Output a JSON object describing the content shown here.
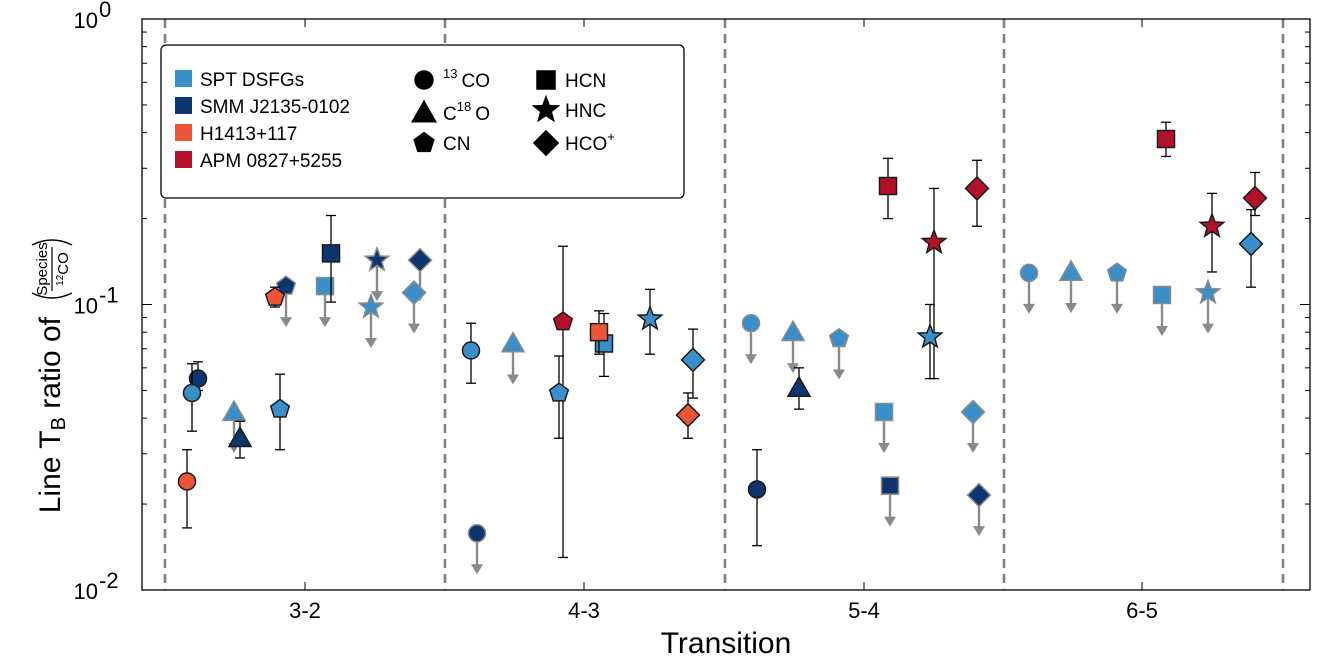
{
  "chart_data": {
    "type": "scatter",
    "x_label": "Transition",
    "y_label": {
      "prefix": "Line T",
      "sub": "B",
      "middle": " ratio of ",
      "numerator": "Species",
      "denominator_sup": "12",
      "denominator": "CO"
    },
    "y_scale": "log",
    "ylim": [
      0.01,
      1
    ],
    "y_ticks": [
      {
        "value": 1,
        "base": "10",
        "exp": "0"
      },
      {
        "value": 0.1,
        "base": "10",
        "exp": "-1"
      },
      {
        "value": 0.01,
        "base": "10",
        "exp": "-2"
      }
    ],
    "categories": [
      "3-2",
      "4-3",
      "5-4",
      "6-5"
    ],
    "sources": [
      {
        "name": "SPT DSFGs",
        "color": "#3a8fcb"
      },
      {
        "name": "SMM J2135-0102",
        "color": "#0d3570"
      },
      {
        "name": "H1413+117",
        "color": "#ee5538"
      },
      {
        "name": "APM 0827+5255",
        "color": "#b5102a"
      }
    ],
    "species": [
      {
        "sup": "13",
        "name": "CO",
        "marker": "circle"
      },
      {
        "sup": "18",
        "name": "O",
        "prefix": "C",
        "marker": "triangle"
      },
      {
        "sup": "",
        "name": "CN",
        "marker": "pentagon"
      },
      {
        "sup": "",
        "name": "HCN",
        "marker": "square"
      },
      {
        "sup": "",
        "name": "HNC",
        "marker": "star"
      },
      {
        "sup": "+",
        "name": "HCO",
        "marker": "diamond"
      }
    ],
    "points": [
      {
        "cat": "3-2",
        "species": "13CO",
        "source": "SMM J2135-0102",
        "y": 0.055,
        "err": [
          0.05,
          0.063
        ]
      },
      {
        "cat": "3-2",
        "species": "13CO",
        "source": "SPT DSFGs",
        "y": 0.049,
        "err": [
          0.036,
          0.062
        ]
      },
      {
        "cat": "3-2",
        "species": "13CO",
        "source": "H1413+117",
        "y": 0.024,
        "err": [
          0.0165,
          0.031
        ]
      },
      {
        "cat": "3-2",
        "species": "C18O",
        "source": "SPT DSFGs",
        "y": 0.042,
        "upper": true
      },
      {
        "cat": "3-2",
        "species": "C18O",
        "source": "SMM J2135-0102",
        "y": 0.034,
        "err": [
          0.029,
          0.039
        ]
      },
      {
        "cat": "3-2",
        "species": "CN",
        "source": "SPT DSFGs",
        "y": 0.043,
        "err": [
          0.031,
          0.057
        ]
      },
      {
        "cat": "3-2",
        "species": "CN",
        "source": "SMM J2135-0102",
        "y": 0.116,
        "upper": true
      },
      {
        "cat": "3-2",
        "species": "CN",
        "source": "H1413+117",
        "y": 0.106,
        "err": [
          0.098,
          0.115
        ]
      },
      {
        "cat": "3-2",
        "species": "HCN",
        "source": "SPT DSFGs",
        "y": 0.116,
        "upper": true
      },
      {
        "cat": "3-2",
        "species": "HCN",
        "source": "SMM J2135-0102",
        "y": 0.151,
        "err": [
          0.102,
          0.205
        ]
      },
      {
        "cat": "3-2",
        "species": "HNC",
        "source": "SMM J2135-0102",
        "y": 0.143,
        "upper": true
      },
      {
        "cat": "3-2",
        "species": "HNC",
        "source": "SPT DSFGs",
        "y": 0.098,
        "upper": true
      },
      {
        "cat": "3-2",
        "species": "HCO+",
        "source": "SMM J2135-0102",
        "y": 0.143,
        "upper": true
      },
      {
        "cat": "3-2",
        "species": "HCO+",
        "source": "SPT DSFGs",
        "y": 0.11,
        "upper": true
      },
      {
        "cat": "4-3",
        "species": "13CO",
        "source": "SPT DSFGs",
        "y": 0.069,
        "err": [
          0.053,
          0.086
        ]
      },
      {
        "cat": "4-3",
        "species": "13CO",
        "source": "SMM J2135-0102",
        "y": 0.0158,
        "upper": true
      },
      {
        "cat": "4-3",
        "species": "C18O",
        "source": "SPT DSFGs",
        "y": 0.073,
        "upper": true
      },
      {
        "cat": "4-3",
        "species": "CN",
        "source": "APM 0827+5255",
        "y": 0.087,
        "err": [
          0.013,
          0.16
        ]
      },
      {
        "cat": "4-3",
        "species": "CN",
        "source": "SPT DSFGs",
        "y": 0.049,
        "err": [
          0.034,
          0.066
        ]
      },
      {
        "cat": "4-3",
        "species": "HCN",
        "source": "SPT DSFGs",
        "y": 0.073,
        "err": [
          0.056,
          0.093
        ]
      },
      {
        "cat": "4-3",
        "species": "HCN",
        "source": "H1413+117",
        "y": 0.08,
        "err": [
          0.067,
          0.095
        ]
      },
      {
        "cat": "4-3",
        "species": "HNC",
        "source": "SPT DSFGs",
        "y": 0.089,
        "err": [
          0.067,
          0.113
        ]
      },
      {
        "cat": "4-3",
        "species": "HCO+",
        "source": "SPT DSFGs",
        "y": 0.064,
        "err": [
          0.047,
          0.082
        ]
      },
      {
        "cat": "4-3",
        "species": "HCO+",
        "source": "H1413+117",
        "y": 0.041,
        "err": [
          0.034,
          0.049
        ]
      },
      {
        "cat": "5-4",
        "species": "13CO",
        "source": "SPT DSFGs",
        "y": 0.086,
        "upper": true
      },
      {
        "cat": "5-4",
        "species": "13CO",
        "source": "SMM J2135-0102",
        "y": 0.0225,
        "err": [
          0.0143,
          0.031
        ]
      },
      {
        "cat": "5-4",
        "species": "C18O",
        "source": "SPT DSFGs",
        "y": 0.08,
        "upper": true
      },
      {
        "cat": "5-4",
        "species": "C18O",
        "source": "SMM J2135-0102",
        "y": 0.051,
        "err": [
          0.043,
          0.06
        ]
      },
      {
        "cat": "5-4",
        "species": "CN",
        "source": "SPT DSFGs",
        "y": 0.076,
        "upper": true
      },
      {
        "cat": "5-4",
        "species": "HCN",
        "source": "APM 0827+5255",
        "y": 0.26,
        "err": [
          0.2,
          0.325
        ]
      },
      {
        "cat": "5-4",
        "species": "HCN",
        "source": "SPT DSFGs",
        "y": 0.042,
        "upper": true
      },
      {
        "cat": "5-4",
        "species": "HCN",
        "source": "SMM J2135-0102",
        "y": 0.0232,
        "upper": true
      },
      {
        "cat": "5-4",
        "species": "HNC",
        "source": "APM 0827+5255",
        "y": 0.165,
        "err": [
          0.055,
          0.255
        ]
      },
      {
        "cat": "5-4",
        "species": "HNC",
        "source": "SPT DSFGs",
        "y": 0.077,
        "err": [
          0.055,
          0.1
        ]
      },
      {
        "cat": "5-4",
        "species": "HCO+",
        "source": "APM 0827+5255",
        "y": 0.255,
        "err": [
          0.188,
          0.32
        ]
      },
      {
        "cat": "5-4",
        "species": "HCO+",
        "source": "SPT DSFGs",
        "y": 0.042,
        "upper": true
      },
      {
        "cat": "5-4",
        "species": "HCO+",
        "source": "SMM J2135-0102",
        "y": 0.0215,
        "upper": true
      },
      {
        "cat": "6-5",
        "species": "13CO",
        "source": "SPT DSFGs",
        "y": 0.129,
        "upper": true
      },
      {
        "cat": "6-5",
        "species": "C18O",
        "source": "SPT DSFGs",
        "y": 0.13,
        "upper": true
      },
      {
        "cat": "6-5",
        "species": "CN",
        "source": "SPT DSFGs",
        "y": 0.129,
        "upper": true
      },
      {
        "cat": "6-5",
        "species": "HCN",
        "source": "SPT DSFGs",
        "y": 0.108,
        "upper": true
      },
      {
        "cat": "6-5",
        "species": "HCN",
        "source": "APM 0827+5255",
        "y": 0.38,
        "err": [
          0.33,
          0.435
        ]
      },
      {
        "cat": "6-5",
        "species": "HNC",
        "source": "APM 0827+5255",
        "y": 0.188,
        "err": [
          0.13,
          0.245
        ]
      },
      {
        "cat": "6-5",
        "species": "HNC",
        "source": "SPT DSFGs",
        "y": 0.11,
        "upper": true
      },
      {
        "cat": "6-5",
        "species": "HCO+",
        "source": "APM 0827+5255",
        "y": 0.236,
        "err": [
          0.205,
          0.29
        ]
      },
      {
        "cat": "6-5",
        "species": "HCO+",
        "source": "SPT DSFGs",
        "y": 0.163,
        "err": [
          0.115,
          0.215
        ]
      }
    ]
  }
}
